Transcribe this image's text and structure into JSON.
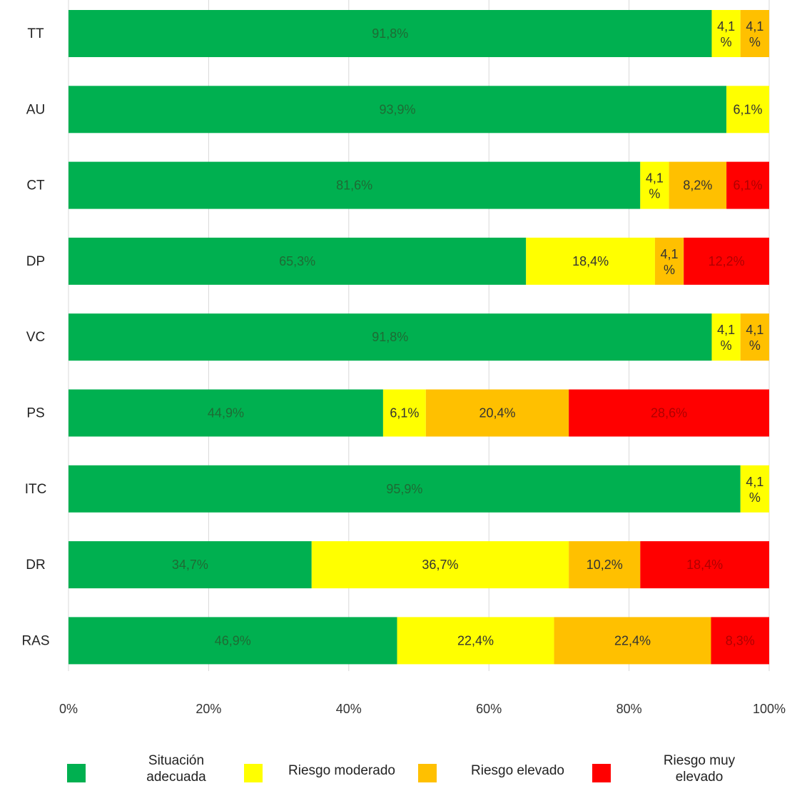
{
  "chart_data": {
    "type": "bar",
    "orientation": "horizontal",
    "stacked": true,
    "percent_stacked": true,
    "categories": [
      "TT",
      "AU",
      "CT",
      "DP",
      "VC",
      "PS",
      "ITC",
      "DR",
      "RAS"
    ],
    "series": [
      {
        "name": "Situación adecuada",
        "color": "#00b050",
        "values": [
          91.8,
          93.9,
          81.6,
          65.3,
          91.8,
          44.9,
          95.9,
          34.7,
          46.9
        ],
        "labels": [
          "91,8%",
          "93,9%",
          "81,6%",
          "65,3%",
          "91,8%",
          "44,9%",
          "95,9%",
          "34,7%",
          "46,9%"
        ]
      },
      {
        "name": "Riesgo moderado",
        "color": "#ffff00",
        "values": [
          4.1,
          6.1,
          4.1,
          18.4,
          4.1,
          6.1,
          4.1,
          36.7,
          22.4
        ],
        "labels": [
          "4,1 %",
          "6,1%",
          "4,1 %",
          "18,4%",
          "4,1 %",
          "6,1%",
          "4,1 %",
          "36,7%",
          "22,4%"
        ]
      },
      {
        "name": "Riesgo elevado",
        "color": "#ffc000",
        "values": [
          4.1,
          0,
          8.2,
          4.1,
          4.1,
          20.4,
          0,
          10.2,
          22.4
        ],
        "labels": [
          "4,1 %",
          "",
          "8,2%",
          "4,1 %",
          "4,1 %",
          "20,4%",
          "",
          "10,2%",
          "22,4%"
        ]
      },
      {
        "name": "Riesgo muy elevado",
        "color": "#ff0000",
        "values": [
          0,
          0,
          6.1,
          12.2,
          0,
          28.6,
          0,
          18.4,
          8.3
        ],
        "labels": [
          "",
          "",
          "6,1%",
          "12,2%",
          "",
          "28,6%",
          "",
          "18,4%",
          "8,3%"
        ]
      }
    ],
    "xlim": [
      0,
      100
    ],
    "xticks": [
      "0%",
      "20%",
      "40%",
      "60%",
      "80%",
      "100%"
    ],
    "grid": true,
    "legend_position": "bottom",
    "legend_labels": [
      "Situación adecuada",
      "Riesgo moderado",
      "Riesgo elevado",
      "Riesgo muy elevado"
    ]
  }
}
